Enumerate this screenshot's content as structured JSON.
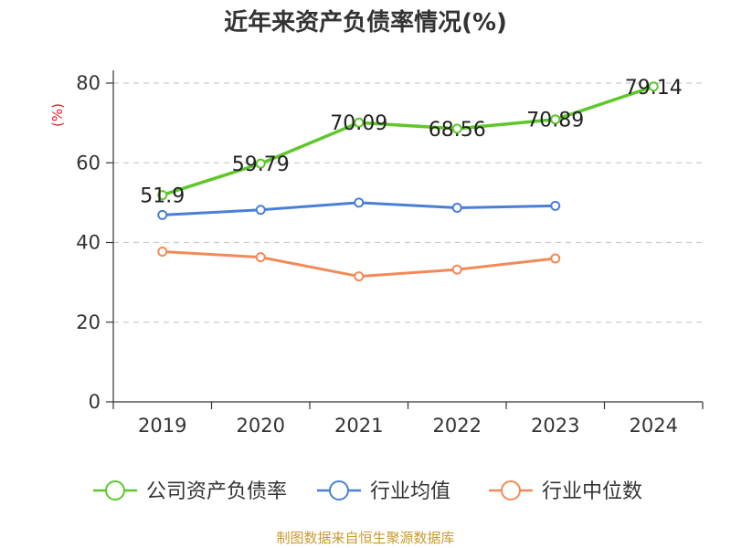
{
  "chart_data": {
    "type": "line",
    "title": "近年来资产负债率情况(%)",
    "ylabel": "(%)",
    "xlabel": "",
    "categories": [
      "2019",
      "2020",
      "2021",
      "2022",
      "2023",
      "2024"
    ],
    "ylim": [
      0,
      80
    ],
    "yticks": [
      "0",
      "20",
      "40",
      "60",
      "80"
    ],
    "grid": true,
    "legend_position": "bottom",
    "series": [
      {
        "name": "公司资产负债率",
        "color": "#5ec72a",
        "values": [
          51.9,
          59.79,
          70.09,
          68.56,
          70.89,
          79.14
        ],
        "labels": [
          "51.9",
          "59.79",
          "70.09",
          "68.56",
          "70.89",
          "79.14"
        ]
      },
      {
        "name": "行业均值",
        "color": "#4a7fd6",
        "values": [
          46.9,
          48.2,
          50.0,
          48.7,
          49.2,
          null
        ]
      },
      {
        "name": "行业中位数",
        "color": "#f28a57",
        "values": [
          37.7,
          36.3,
          31.5,
          33.2,
          36.0,
          null
        ]
      }
    ],
    "source": "制图数据来自恒生聚源数据库",
    "colors": {
      "axis": "#333333",
      "grid": "#cccccc",
      "ylabel": "#e02020",
      "source": "#c89a2c"
    }
  }
}
